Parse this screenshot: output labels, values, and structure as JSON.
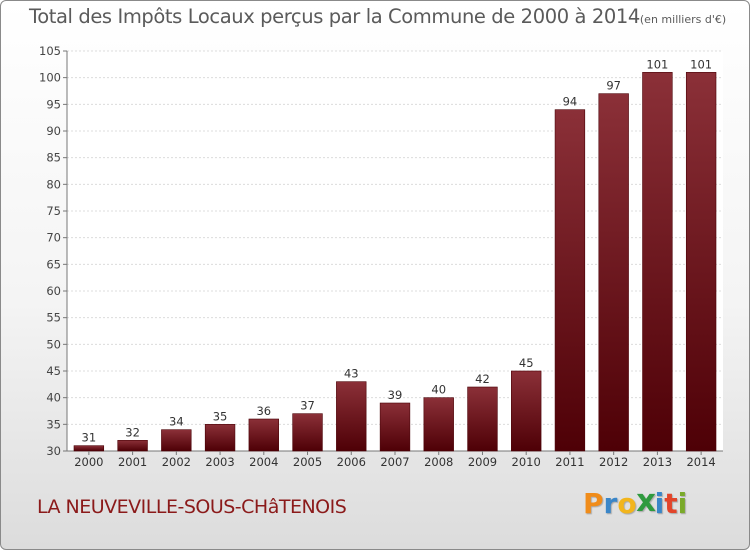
{
  "chart_data": {
    "type": "bar",
    "title": "Total des Impôts Locaux perçus par la Commune de 2000 à 2014",
    "unit_label": "(en milliers d'€)",
    "categories": [
      "2000",
      "2001",
      "2002",
      "2003",
      "2004",
      "2005",
      "2006",
      "2007",
      "2008",
      "2009",
      "2010",
      "2011",
      "2012",
      "2013",
      "2014"
    ],
    "values": [
      31,
      32,
      34,
      35,
      36,
      37,
      43,
      39,
      40,
      42,
      45,
      94,
      97,
      101,
      101
    ],
    "ylim": [
      30,
      105
    ],
    "yticks": [
      30,
      35,
      40,
      45,
      50,
      55,
      60,
      65,
      70,
      75,
      80,
      85,
      90,
      95,
      100,
      105
    ],
    "xlabel": "",
    "ylabel": "",
    "grid": true,
    "bar_color_top": "#8b3038",
    "bar_color_bottom": "#4e0006"
  },
  "footer": {
    "commune": "LA NEUVEVILLE-SOUS-CHâTENOIS",
    "logo_letters": [
      "P",
      "r",
      "o",
      "x",
      "i",
      "t",
      "i"
    ],
    "logo_colors": [
      "#f08c1a",
      "#3a86c8",
      "#f2b51c",
      "#2f9a3e",
      "#3a86c8",
      "#e2452b",
      "#7aaa2a"
    ]
  }
}
